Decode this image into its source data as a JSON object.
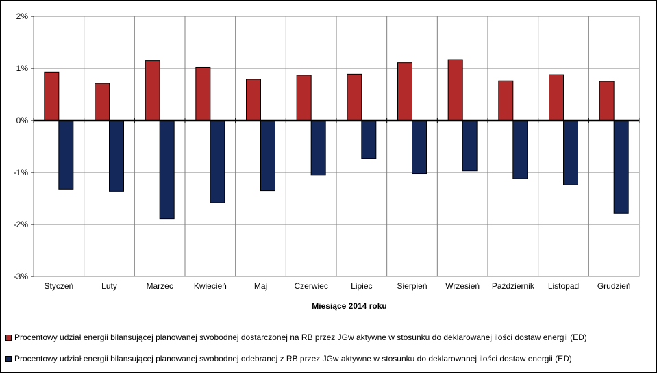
{
  "chart_data": {
    "type": "bar",
    "title": "",
    "xlabel": "Miesiące 2014  roku",
    "ylabel": "",
    "ylim": [
      -3,
      2
    ],
    "yticks": [
      2,
      1,
      0,
      -1,
      -2,
      -3
    ],
    "ytick_labels": [
      "2%",
      "1%",
      "0%",
      "-1%",
      "-2%",
      "-3%"
    ],
    "grid": true,
    "legend_position": "bottom",
    "categories": [
      "Styczeń",
      "Luty",
      "Marzec",
      "Kwiecień",
      "Maj",
      "Czerwiec",
      "Lipiec",
      "Sierpień",
      "Wrzesień",
      "Październik",
      "Listopad",
      "Grudzień"
    ],
    "series": [
      {
        "name": "Procentowy udział energii bilansującej planowanej swobodnej dostarczonej na RB przez JGw aktywne w stosunku do deklarowanej ilości dostaw energii (ED)",
        "color": "#B22A2A",
        "values": [
          0.93,
          0.71,
          1.15,
          1.02,
          0.79,
          0.87,
          0.89,
          1.11,
          1.17,
          0.76,
          0.88,
          0.75
        ]
      },
      {
        "name": "Procentowy udział energii bilansującej planowanej swobodnej odebranej z RB przez JGw aktywne w stosunku do deklarowanej ilości dostaw energii (ED)",
        "color": "#14295A",
        "values": [
          -1.32,
          -1.36,
          -1.89,
          -1.58,
          -1.35,
          -1.05,
          -0.73,
          -1.02,
          -0.97,
          -1.12,
          -1.24,
          -1.78
        ]
      }
    ]
  }
}
